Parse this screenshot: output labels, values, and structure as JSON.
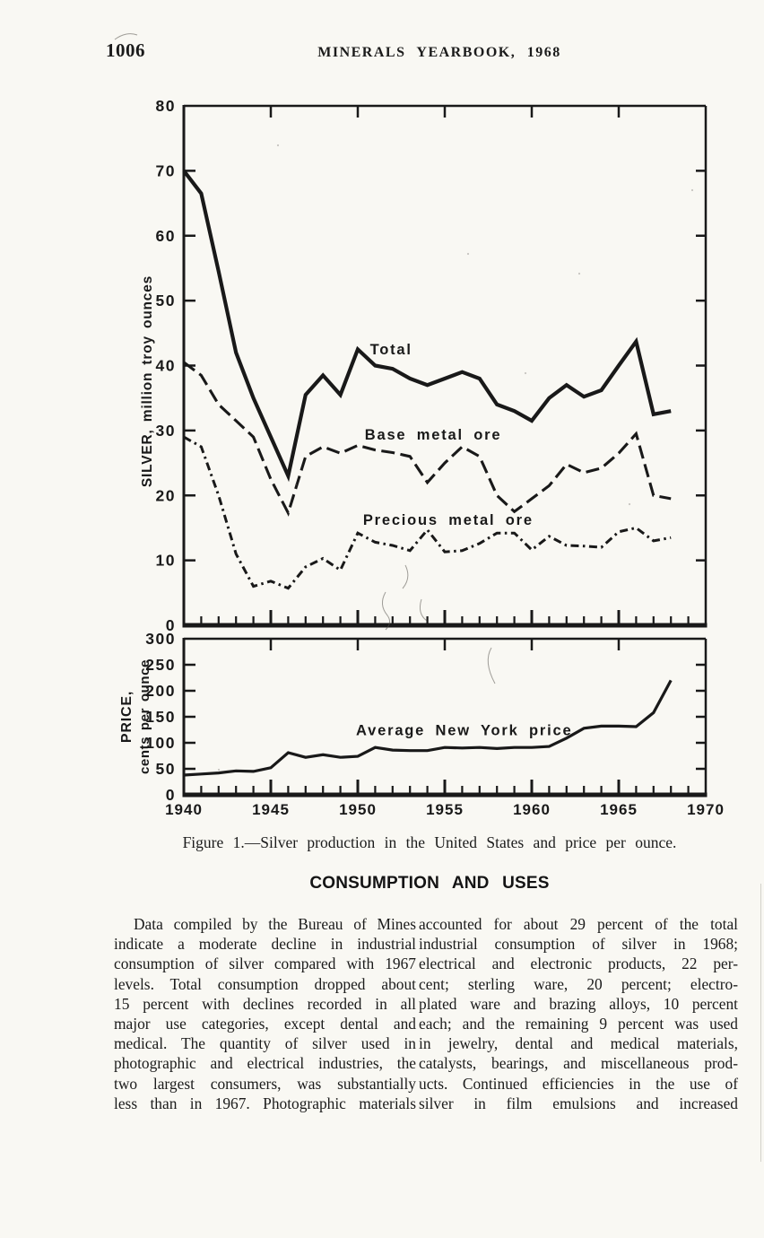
{
  "page": {
    "number": "1006",
    "running_title": "MINERALS YEARBOOK, 1968"
  },
  "figure": {
    "caption": "Figure 1.—Silver production in the United States and price per ounce."
  },
  "chart_data": [
    {
      "type": "line",
      "title": "Silver production in the United States",
      "ylabel": "SILVER, million troy ounces",
      "xlabel": "",
      "ylim": [
        0,
        80
      ],
      "yticks": [
        0,
        10,
        20,
        30,
        40,
        50,
        60,
        70,
        80
      ],
      "xlim": [
        1940,
        1970
      ],
      "xticks": [
        1940,
        1945,
        1950,
        1955,
        1960,
        1965,
        1970
      ],
      "grid": false,
      "legend_position": "inline-labels",
      "x": [
        1940,
        1941,
        1942,
        1943,
        1944,
        1945,
        1946,
        1947,
        1948,
        1949,
        1950,
        1951,
        1952,
        1953,
        1954,
        1955,
        1956,
        1957,
        1958,
        1959,
        1960,
        1961,
        1962,
        1963,
        1964,
        1965,
        1966,
        1967,
        1968
      ],
      "series": [
        {
          "name": "Total",
          "line_style": "solid",
          "values": [
            70,
            66.5,
            54.5,
            42,
            35,
            29,
            23,
            35.5,
            38.5,
            35.5,
            42.5,
            40,
            39.5,
            38,
            37,
            38,
            39,
            38,
            34,
            33,
            31.5,
            35,
            37,
            35.2,
            36.2,
            40,
            43.7,
            32.5,
            33
          ]
        },
        {
          "name": "Base metal ore",
          "line_style": "dashed",
          "values": [
            40.5,
            38.5,
            34,
            31.5,
            29,
            22.5,
            17.3,
            26,
            27.5,
            26.5,
            27.7,
            27,
            26.6,
            26,
            22,
            25,
            27.5,
            26,
            20,
            17.5,
            19.5,
            21.5,
            24.8,
            23.5,
            24.2,
            26.5,
            29.5,
            20,
            19.5
          ]
        },
        {
          "name": "Precious metal ore",
          "line_style": "dash-dot",
          "values": [
            29,
            27.5,
            20,
            11,
            6,
            6.8,
            5.7,
            9,
            10.3,
            8.5,
            14.2,
            12.8,
            12.3,
            11.5,
            14.7,
            11.3,
            11.5,
            12.6,
            14.2,
            14.2,
            11.6,
            13.7,
            12.3,
            12.2,
            12,
            14.4,
            15,
            13,
            13.5
          ]
        }
      ],
      "annotations": [
        {
          "text": "Total",
          "x": 1950.7,
          "y": 41.7
        },
        {
          "text": "Base metal ore",
          "x": 1950.4,
          "y": 28.6
        },
        {
          "text": "Precious metal ore",
          "x": 1950.3,
          "y": 15.5
        }
      ]
    },
    {
      "type": "line",
      "title": "Silver price per ounce",
      "ylabel": "PRICE, cents per ounce",
      "ylabel_lines": [
        "PRICE,",
        "cents per ounce"
      ],
      "xlabel": "",
      "ylim": [
        0,
        300
      ],
      "yticks": [
        0,
        50,
        100,
        150,
        200,
        250,
        300
      ],
      "xlim": [
        1940,
        1970
      ],
      "xticks": [
        1940,
        1945,
        1950,
        1955,
        1960,
        1965,
        1970
      ],
      "grid": false,
      "legend_position": "inline-labels",
      "x": [
        1940,
        1941,
        1942,
        1943,
        1944,
        1945,
        1946,
        1947,
        1948,
        1949,
        1950,
        1951,
        1952,
        1953,
        1954,
        1955,
        1956,
        1957,
        1958,
        1959,
        1960,
        1961,
        1962,
        1963,
        1964,
        1965,
        1966,
        1967,
        1968
      ],
      "series": [
        {
          "name": "Average New York price",
          "line_style": "solid",
          "values": [
            38,
            40,
            42,
            46,
            45,
            52,
            81,
            72,
            77,
            72,
            74,
            91,
            86,
            85,
            85,
            91,
            90,
            91,
            89,
            91,
            91,
            93,
            109,
            128,
            132,
            132,
            131,
            158,
            220
          ]
        }
      ],
      "annotations": [
        {
          "text": "Average New York price",
          "x": 1949.9,
          "y": 115
        }
      ]
    }
  ],
  "section": {
    "heading": "CONSUMPTION AND USES",
    "left_column_lines": [
      "Data compiled by the Bureau of Mines",
      "indicate a moderate decline in industrial",
      "consumption of silver compared with 1967",
      "levels. Total consumption dropped about",
      "15 percent with declines recorded in all",
      "major use categories, except dental and",
      "medical. The quantity of silver used in",
      "photographic and electrical industries, the",
      "two largest consumers, was substantially",
      "less than in 1967. Photographic materials"
    ],
    "right_column_lines": [
      "accounted for about 29 percent of the total",
      "industrial consumption of silver in 1968;",
      "electrical and electronic products, 22 per-",
      "cent; sterling ware, 20 percent; electro-",
      "plated ware and brazing alloys, 10 percent",
      "each; and the remaining 9 percent was used",
      "in jewelry, dental and medical materials,",
      "catalysts, bearings, and miscellaneous prod-",
      "ucts. Continued efficiencies in the use of",
      "silver in film emulsions and increased"
    ]
  }
}
